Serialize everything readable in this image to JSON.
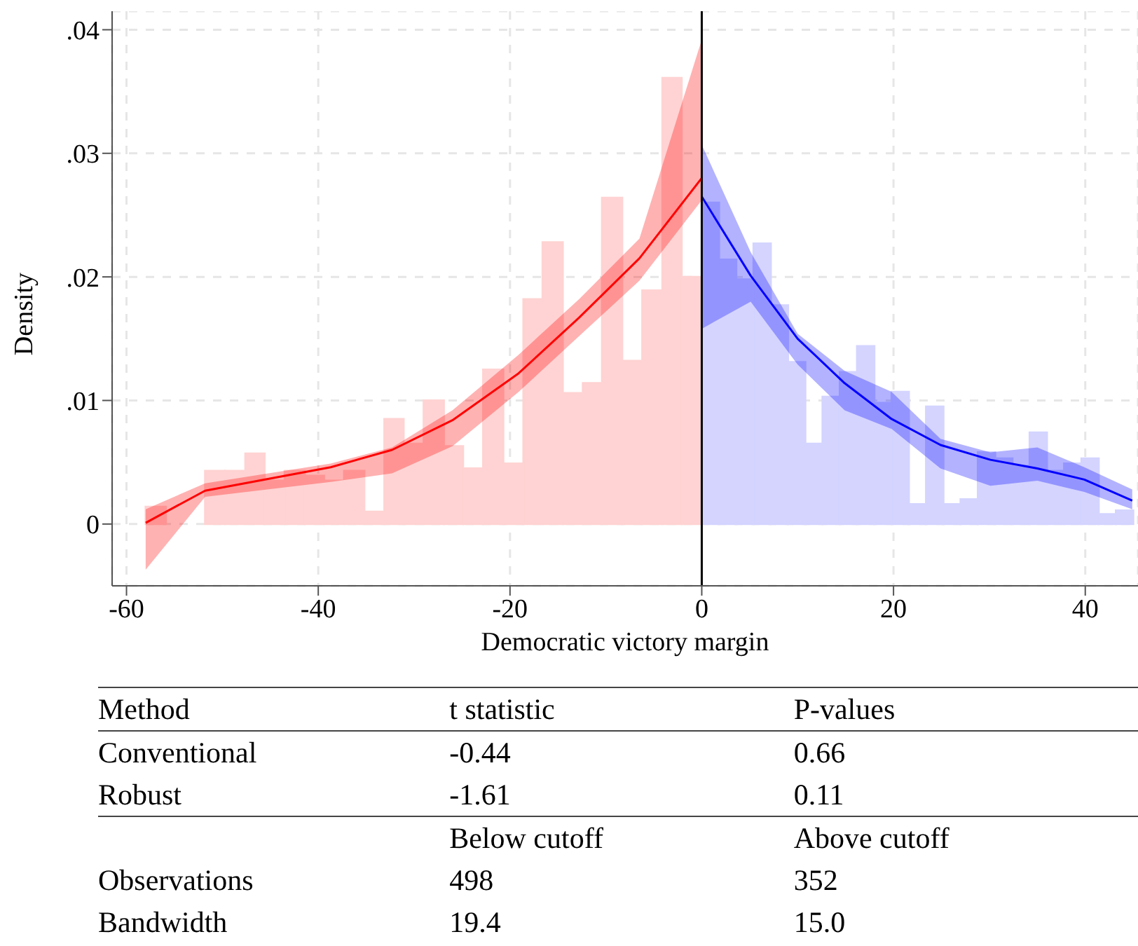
{
  "chart_data": {
    "type": "histogram",
    "xlabel": "Democratic victory margin",
    "ylabel": "Density",
    "xlim": [
      -61.5,
      45.5
    ],
    "ylim": [
      -0.005,
      0.0415
    ],
    "xticks": [
      -60,
      -40,
      -20,
      0,
      20,
      40
    ],
    "yticks": [
      0,
      {
        "value": 0.01,
        "label": ".01"
      },
      {
        "value": 0.02,
        "label": ".02"
      },
      {
        "value": 0.03,
        "label": ".03"
      },
      {
        "value": 0.04,
        "label": ".04"
      }
    ],
    "grid": true,
    "legend": false,
    "marker": "none",
    "ref_lines": [
      {
        "axis": "x",
        "value": 0,
        "color": "#000000"
      }
    ],
    "series": [
      {
        "color": "#ffd3d3",
        "bins": [
          -58,
          -55.9
        ],
        "values": [
          0.0014
        ]
      },
      {
        "color": "#ffd3d3",
        "bins": [
          -51.8,
          -49.7,
          -47.6,
          -45.6,
          -43.5,
          -41.4,
          -39.4,
          -37.3,
          -35.2,
          -33.1,
          -31.1,
          -29,
          -26.9,
          -24.9,
          -22.8,
          -20.7,
          -18.6,
          -16.6,
          -14.5,
          -12.4,
          -10.4,
          -8.3,
          -6.2,
          -4.1,
          -2.1,
          0
        ],
        "values": [
          0.0043,
          0.0043,
          0.0057,
          0.0035,
          0.0043,
          0.0039,
          0.0035,
          0.0043,
          0.001,
          0.0085,
          0.0065,
          0.01,
          0.0063,
          0.0045,
          0.0125,
          0.0049,
          0.0182,
          0.0228,
          0.0106,
          0.0114,
          0.0264,
          0.0132,
          0.0189,
          0.0361,
          0.02
        ]
      },
      {
        "color": "#d4d4ff",
        "bins": [
          0,
          1.8,
          3.6,
          5.4,
          7.2,
          9,
          10.8,
          12.6,
          14.4,
          16.2,
          18,
          19.8,
          21.6,
          23.4,
          25.2,
          27,
          28.8,
          30.6,
          32.4,
          34.2,
          36,
          37.8,
          39.6,
          41.4,
          43.2,
          45
        ],
        "values": [
          0.026,
          0.0214,
          0.0198,
          0.0227,
          0.0177,
          0.0131,
          0.0065,
          0.0103,
          0.0123,
          0.0144,
          0.0098,
          0.0107,
          0.0016,
          0.0095,
          0.0016,
          0.002,
          0.0058,
          0.0053,
          0.0047,
          0.0074,
          0.0043,
          0.0049,
          0.0053,
          0.0008,
          0.0011
        ]
      },
      {
        "type": "line",
        "color": "#ff0000",
        "x": [
          -58,
          -51.8,
          -38.7,
          -32.3,
          -26,
          -19.1,
          -12.8,
          -6.5,
          0
        ],
        "values": [
          0.0001,
          0.0027,
          0.0046,
          0.006,
          0.0084,
          0.0122,
          0.0167,
          0.0215,
          0.028
        ],
        "lower": [
          -0.0037,
          0.0022,
          0.0034,
          0.0041,
          0.0063,
          0.0107,
          0.0152,
          0.0197,
          0.0262
        ],
        "upper": [
          0.0012,
          0.0033,
          0.0049,
          0.0062,
          0.0092,
          0.0137,
          0.0182,
          0.0231,
          0.0392
        ]
      },
      {
        "type": "line",
        "color": "#0000ff",
        "x": [
          0,
          5.1,
          10,
          14.9,
          19.8,
          24.9,
          30.1,
          35,
          39.9,
          44.9
        ],
        "values": [
          0.0265,
          0.0201,
          0.015,
          0.0114,
          0.0085,
          0.0064,
          0.0052,
          0.0045,
          0.0036,
          0.0019
        ],
        "lower": [
          0.0158,
          0.018,
          0.0129,
          0.0092,
          0.0077,
          0.0045,
          0.0031,
          0.0035,
          0.0026,
          0.0012
        ],
        "upper": [
          0.0307,
          0.022,
          0.0154,
          0.0124,
          0.0107,
          0.0069,
          0.0058,
          0.0062,
          0.0046,
          0.0028
        ]
      }
    ],
    "annotations": [
      "Method",
      "t statistic",
      "P-values",
      "Conventional",
      "-0.44",
      "0.66",
      "Robust",
      "-1.61",
      "0.11",
      null,
      "Below cutoff",
      "Above cutoff",
      "Observations",
      "498",
      "352",
      "Bandwidth",
      "19.4",
      "15.0"
    ]
  }
}
